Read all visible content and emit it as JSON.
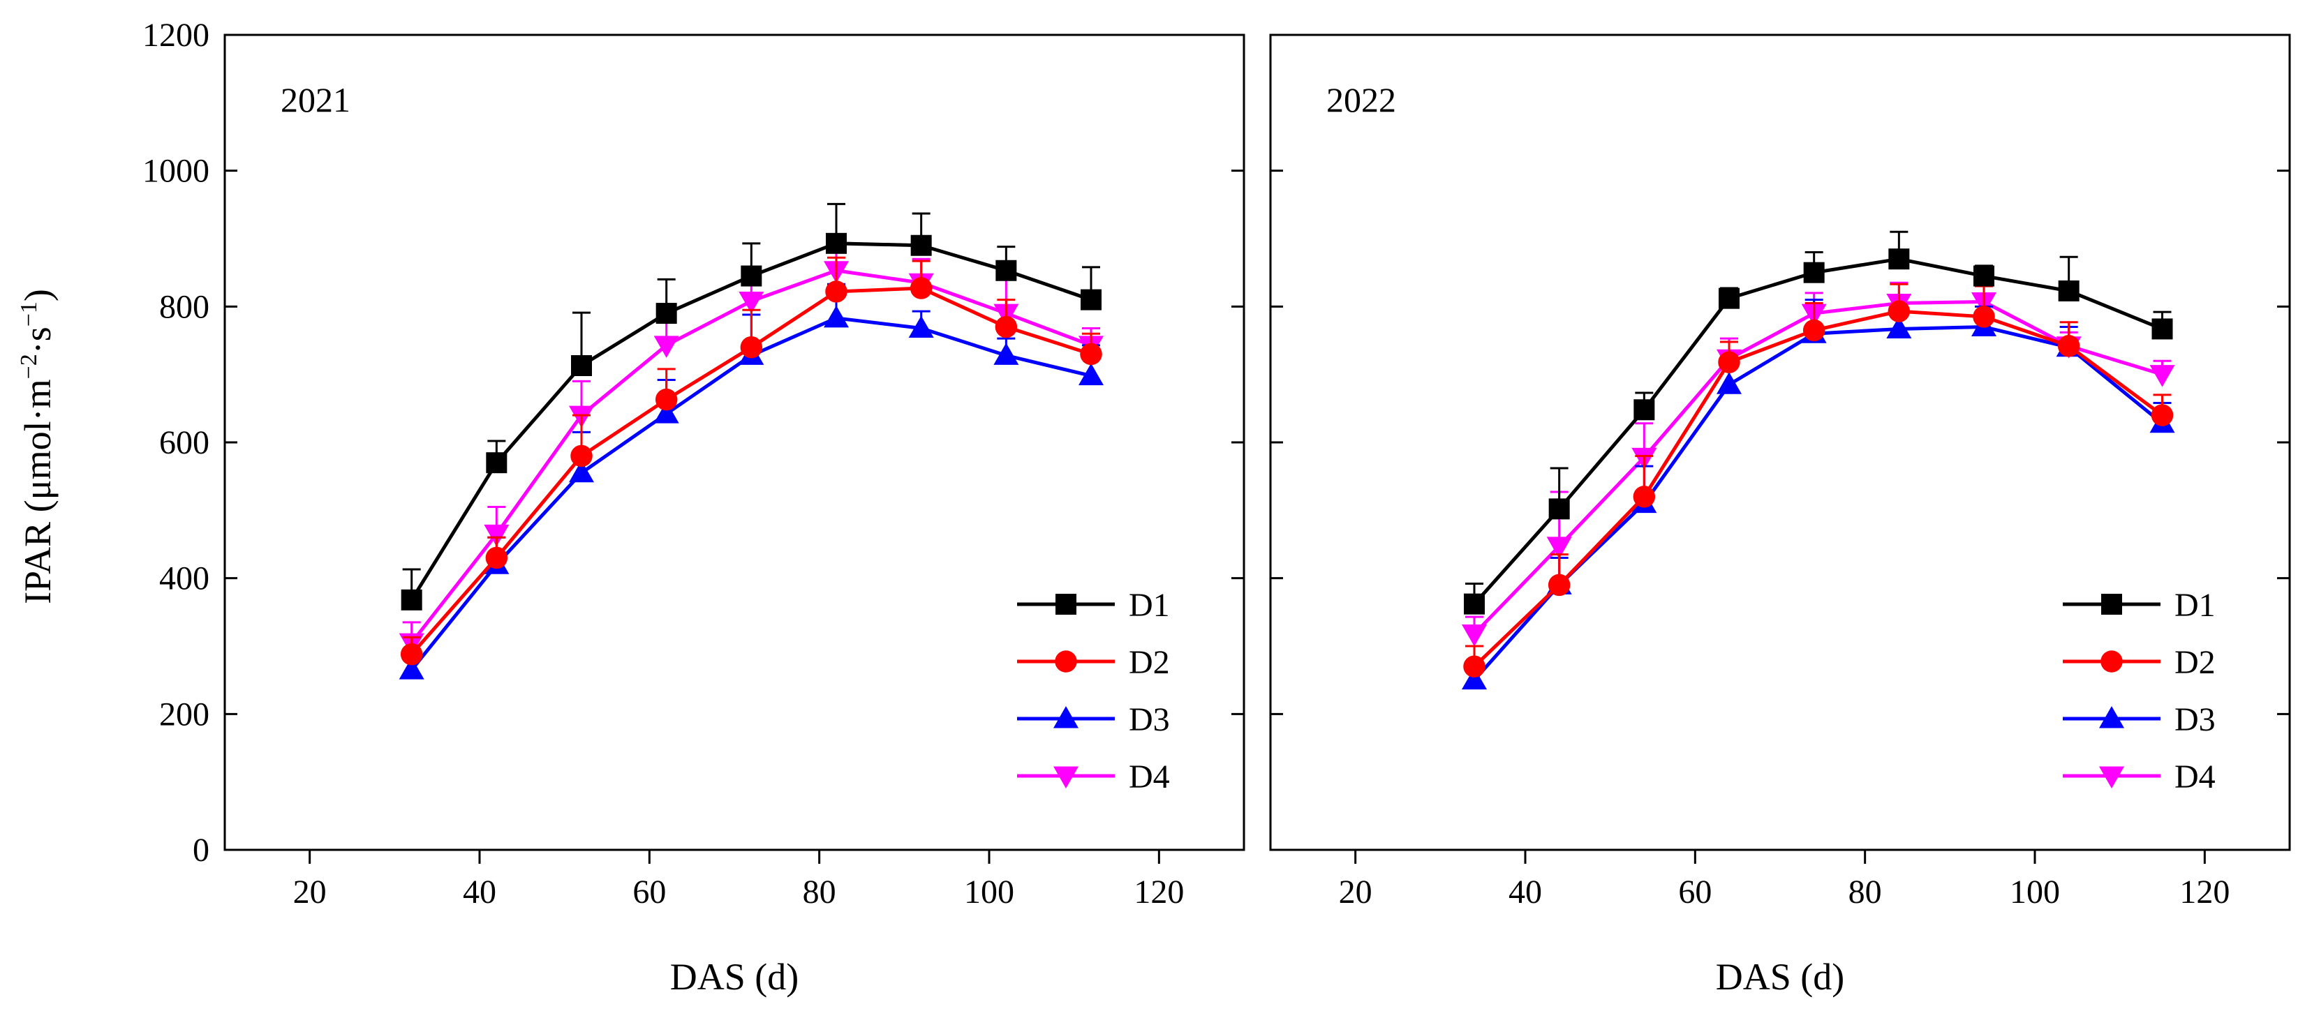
{
  "chart_data": {
    "type": "line",
    "ylabel": "IPAR (μmol·m−2·s−1)",
    "ylabel_parts": {
      "base": "IPAR (μmol·m",
      "exp1": "−2",
      "mid": "·s",
      "exp2": "−1",
      "end": ")"
    },
    "xlabel": "DAS (d)",
    "ylim": [
      0,
      1200
    ],
    "yticks": [
      "0",
      "200",
      "400",
      "600",
      "800",
      "1000",
      "1200"
    ],
    "xlim": [
      10,
      130
    ],
    "xticks": [
      "20",
      "40",
      "60",
      "80",
      "100",
      "120"
    ],
    "legend_position": "bottom-right",
    "panels": [
      {
        "label": "2021",
        "x": [
          32,
          42,
          52,
          62,
          72,
          82,
          92,
          102,
          112
        ],
        "series": [
          {
            "name": "D1",
            "color": "#000000",
            "marker": "square",
            "values": [
              368,
              570,
              713,
              790,
              845,
              893,
              890,
              853,
              810
            ],
            "errors": [
              45,
              32,
              78,
              50,
              48,
              58,
              47,
              35,
              48
            ]
          },
          {
            "name": "D2",
            "color": "#ff0000",
            "marker": "circle",
            "values": [
              288,
              430,
              580,
              663,
              740,
              822,
              827,
              770,
              730
            ],
            "errors": [
              25,
              30,
              60,
              45,
              55,
              50,
              40,
              40,
              30
            ]
          },
          {
            "name": "D3",
            "color": "#0000ff",
            "marker": "triangle-up",
            "values": [
              265,
              420,
              555,
              642,
              728,
              783,
              768,
              728,
              698
            ],
            "errors": [
              30,
              40,
              60,
              50,
              60,
              50,
              25,
              25,
              45
            ]
          },
          {
            "name": "D4",
            "color": "#ff00ff",
            "marker": "triangle-down",
            "values": [
              305,
              465,
              640,
              743,
              808,
              853,
              835,
              790,
              743
            ],
            "errors": [
              30,
              40,
              50,
              45,
              40,
              40,
              35,
              50,
              25
            ]
          }
        ]
      },
      {
        "label": "2022",
        "x": [
          34,
          44,
          54,
          64,
          74,
          84,
          94,
          104,
          115
        ],
        "series": [
          {
            "name": "D1",
            "color": "#000000",
            "marker": "square",
            "values": [
              362,
              502,
              648,
              812,
              850,
              870,
              845,
              823,
              767
            ],
            "errors": [
              30,
              60,
              25,
              15,
              30,
              40,
              15,
              50,
              25
            ]
          },
          {
            "name": "D2",
            "color": "#ff0000",
            "marker": "circle",
            "values": [
              270,
              390,
              520,
              718,
              765,
              793,
              785,
              742,
              640
            ],
            "errors": [
              30,
              45,
              60,
              30,
              40,
              40,
              45,
              35,
              30
            ]
          },
          {
            "name": "D3",
            "color": "#0000ff",
            "marker": "triangle-up",
            "values": [
              250,
              390,
              510,
              685,
              760,
              767,
              770,
              740,
              628
            ],
            "errors": [
              50,
              40,
              55,
              30,
              50,
              25,
              30,
              30,
              30
            ]
          },
          {
            "name": "D4",
            "color": "#ff00ff",
            "marker": "triangle-down",
            "values": [
              318,
              447,
              578,
              723,
              790,
              805,
              807,
              742,
              700
            ],
            "errors": [
              25,
              80,
              50,
              30,
              30,
              30,
              30,
              20,
              20
            ]
          }
        ]
      }
    ]
  }
}
